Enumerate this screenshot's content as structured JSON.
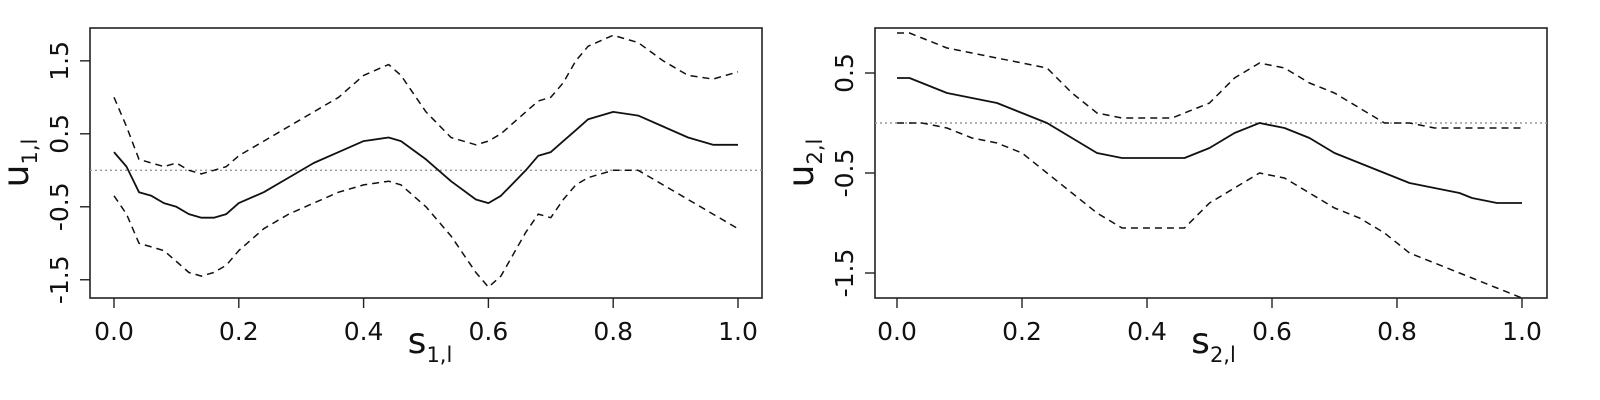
{
  "chart_data": [
    {
      "type": "line",
      "title": "",
      "xlabel": {
        "main": "s",
        "sub": "1,l"
      },
      "ylabel": {
        "main": "u",
        "sub": "1,l"
      },
      "xlim": [
        0.0,
        1.0
      ],
      "ylim": [
        -1.75,
        1.95
      ],
      "x_ticks": [
        "0.0",
        "0.2",
        "0.4",
        "0.6",
        "0.8",
        "1.0"
      ],
      "y_ticks": [
        "-1.5",
        "-0.5",
        "0.5",
        "1.5"
      ],
      "reference_line": 0,
      "grid": false,
      "series": [
        {
          "style": "solid",
          "x": [
            0.0,
            0.02,
            0.04,
            0.06,
            0.08,
            0.1,
            0.12,
            0.14,
            0.16,
            0.18,
            0.2,
            0.24,
            0.28,
            0.32,
            0.36,
            0.4,
            0.44,
            0.46,
            0.5,
            0.54,
            0.58,
            0.6,
            0.62,
            0.66,
            0.68,
            0.7,
            0.72,
            0.74,
            0.76,
            0.8,
            0.84,
            0.88,
            0.92,
            0.96,
            1.0
          ],
          "y": [
            0.25,
            0.05,
            -0.3,
            -0.35,
            -0.45,
            -0.5,
            -0.6,
            -0.65,
            -0.65,
            -0.6,
            -0.45,
            -0.3,
            -0.1,
            0.1,
            0.25,
            0.4,
            0.45,
            0.4,
            0.15,
            -0.15,
            -0.4,
            -0.45,
            -0.35,
            0.0,
            0.2,
            0.25,
            0.4,
            0.55,
            0.7,
            0.8,
            0.75,
            0.6,
            0.45,
            0.35,
            0.35
          ]
        },
        {
          "style": "dashed",
          "x": [
            0.0,
            0.02,
            0.04,
            0.06,
            0.08,
            0.1,
            0.12,
            0.14,
            0.16,
            0.18,
            0.2,
            0.24,
            0.28,
            0.32,
            0.36,
            0.4,
            0.44,
            0.46,
            0.5,
            0.54,
            0.58,
            0.6,
            0.62,
            0.66,
            0.68,
            0.7,
            0.72,
            0.74,
            0.76,
            0.8,
            0.84,
            0.88,
            0.92,
            0.96,
            1.0
          ],
          "y": [
            1.0,
            0.6,
            0.15,
            0.1,
            0.05,
            0.1,
            0.0,
            -0.05,
            0.0,
            0.05,
            0.2,
            0.4,
            0.6,
            0.8,
            1.0,
            1.3,
            1.45,
            1.3,
            0.8,
            0.45,
            0.35,
            0.4,
            0.5,
            0.8,
            0.95,
            1.0,
            1.2,
            1.5,
            1.7,
            1.85,
            1.75,
            1.5,
            1.3,
            1.25,
            1.35
          ]
        },
        {
          "style": "dashed",
          "x": [
            0.0,
            0.02,
            0.04,
            0.06,
            0.08,
            0.1,
            0.12,
            0.14,
            0.16,
            0.18,
            0.2,
            0.24,
            0.28,
            0.32,
            0.36,
            0.4,
            0.44,
            0.46,
            0.5,
            0.54,
            0.58,
            0.6,
            0.62,
            0.66,
            0.68,
            0.7,
            0.72,
            0.74,
            0.76,
            0.8,
            0.84,
            0.88,
            0.92,
            0.96,
            1.0
          ],
          "y": [
            -0.35,
            -0.6,
            -1.0,
            -1.05,
            -1.1,
            -1.25,
            -1.4,
            -1.45,
            -1.4,
            -1.3,
            -1.1,
            -0.8,
            -0.6,
            -0.45,
            -0.3,
            -0.2,
            -0.15,
            -0.2,
            -0.5,
            -0.9,
            -1.4,
            -1.6,
            -1.45,
            -0.85,
            -0.6,
            -0.65,
            -0.4,
            -0.2,
            -0.1,
            0.0,
            0.0,
            -0.2,
            -0.4,
            -0.6,
            -0.8
          ]
        }
      ]
    },
    {
      "type": "line",
      "title": "",
      "xlabel": {
        "main": "s",
        "sub": "2,l"
      },
      "ylabel": {
        "main": "u",
        "sub": "2,l"
      },
      "xlim": [
        0.0,
        1.0
      ],
      "ylim": [
        -1.75,
        0.95
      ],
      "x_ticks": [
        "0.0",
        "0.2",
        "0.4",
        "0.6",
        "0.8",
        "1.0"
      ],
      "y_ticks": [
        "-1.5",
        "-0.5",
        "0.5"
      ],
      "reference_line": 0,
      "grid": false,
      "series": [
        {
          "style": "solid",
          "x": [
            0.0,
            0.02,
            0.04,
            0.08,
            0.12,
            0.16,
            0.2,
            0.24,
            0.28,
            0.32,
            0.36,
            0.4,
            0.44,
            0.46,
            0.5,
            0.54,
            0.58,
            0.62,
            0.66,
            0.7,
            0.74,
            0.78,
            0.82,
            0.86,
            0.9,
            0.92,
            0.96,
            1.0
          ],
          "y": [
            0.45,
            0.45,
            0.4,
            0.3,
            0.25,
            0.2,
            0.1,
            0.0,
            -0.15,
            -0.3,
            -0.35,
            -0.35,
            -0.35,
            -0.35,
            -0.25,
            -0.1,
            0.0,
            -0.05,
            -0.15,
            -0.3,
            -0.4,
            -0.5,
            -0.6,
            -0.65,
            -0.7,
            -0.75,
            -0.8,
            -0.8
          ]
        },
        {
          "style": "dashed",
          "x": [
            0.0,
            0.02,
            0.04,
            0.08,
            0.12,
            0.16,
            0.2,
            0.24,
            0.28,
            0.32,
            0.36,
            0.4,
            0.44,
            0.46,
            0.5,
            0.54,
            0.58,
            0.62,
            0.66,
            0.7,
            0.74,
            0.78,
            0.82,
            0.86,
            0.9,
            0.92,
            0.96,
            1.0
          ],
          "y": [
            0.9,
            0.9,
            0.85,
            0.75,
            0.7,
            0.65,
            0.6,
            0.55,
            0.3,
            0.1,
            0.05,
            0.05,
            0.05,
            0.1,
            0.2,
            0.45,
            0.6,
            0.55,
            0.4,
            0.3,
            0.15,
            0.0,
            0.0,
            -0.05,
            -0.05,
            -0.05,
            -0.05,
            -0.05
          ]
        },
        {
          "style": "dashed",
          "x": [
            0.0,
            0.02,
            0.04,
            0.08,
            0.12,
            0.16,
            0.2,
            0.24,
            0.28,
            0.32,
            0.36,
            0.4,
            0.44,
            0.46,
            0.5,
            0.54,
            0.58,
            0.62,
            0.66,
            0.7,
            0.74,
            0.78,
            0.82,
            0.86,
            0.9,
            0.92,
            0.96,
            1.0
          ],
          "y": [
            0.0,
            0.0,
            0.0,
            -0.05,
            -0.15,
            -0.2,
            -0.3,
            -0.5,
            -0.7,
            -0.9,
            -1.05,
            -1.05,
            -1.05,
            -1.05,
            -0.8,
            -0.65,
            -0.5,
            -0.55,
            -0.7,
            -0.85,
            -0.95,
            -1.1,
            -1.3,
            -1.4,
            -1.5,
            -1.55,
            -1.65,
            -1.75
          ]
        }
      ]
    }
  ]
}
